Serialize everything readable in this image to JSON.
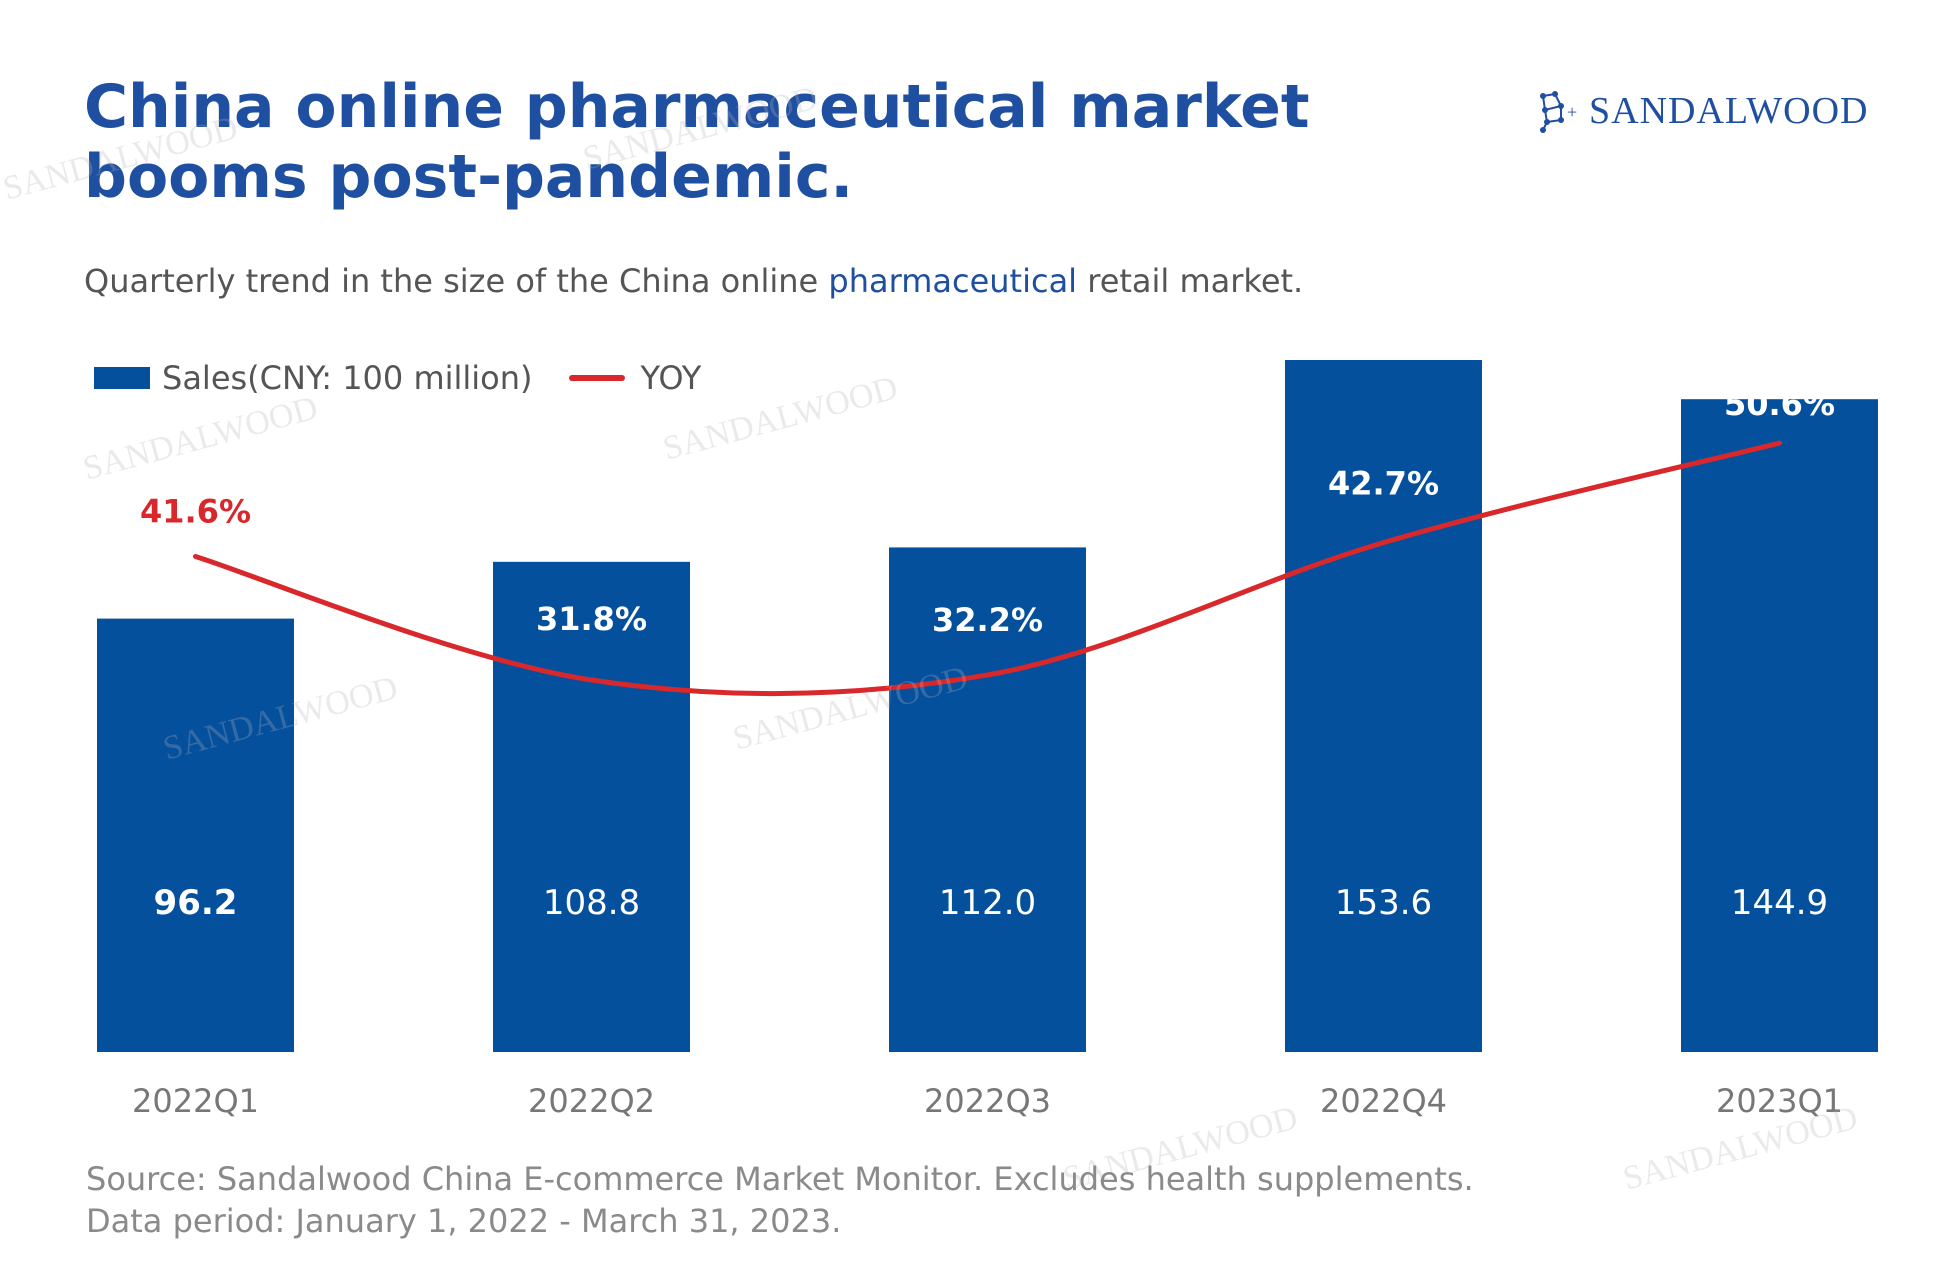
{
  "header": {
    "title": "China online pharmaceutical market booms post-pandemic.",
    "subtitle_pre": "Quarterly trend in the size of the China online ",
    "subtitle_highlight": "pharmaceutical",
    "subtitle_post": " retail market."
  },
  "brand": {
    "logo_text": "SANDALWOOD",
    "watermark_text": "SANDALWOOD"
  },
  "legend": {
    "bar_label": "Sales(CNY: 100 million)",
    "line_label": "YOY"
  },
  "footer": {
    "source": "Source: Sandalwood China E-commerce Market Monitor. Excludes health supplements.",
    "period": "Data period: January 1, 2022 - March 31, 2023."
  },
  "colors": {
    "bar": "#05509c",
    "line": "#d9282b",
    "title": "#1f4fa0",
    "axis_text": "#777777"
  },
  "chart_data": {
    "type": "bar",
    "categories": [
      "2022Q1",
      "2022Q2",
      "2022Q3",
      "2022Q4",
      "2023Q1"
    ],
    "series": [
      {
        "name": "Sales(CNY: 100 million)",
        "type": "bar",
        "values": [
          96.2,
          108.8,
          112.0,
          153.6,
          144.9
        ],
        "labels": [
          "96.2",
          "108.8",
          "112.0",
          "153.6",
          "144.9"
        ]
      },
      {
        "name": "YOY",
        "type": "line",
        "values": [
          41.6,
          31.8,
          32.2,
          42.7,
          50.6
        ],
        "labels": [
          "41.6%",
          "31.8%",
          "32.2%",
          "42.7%",
          "50.6%"
        ]
      }
    ],
    "ylim": [
      0,
      153.6
    ],
    "grid": false,
    "legend_position": "top-left"
  }
}
